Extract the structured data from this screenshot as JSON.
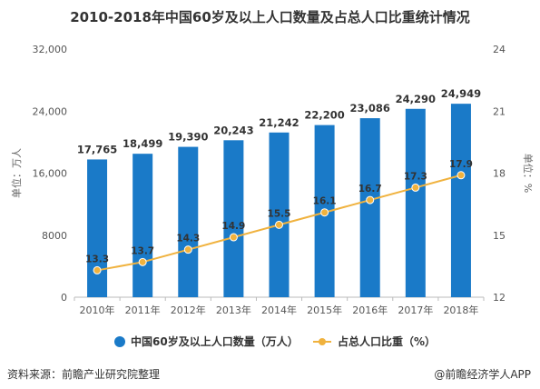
{
  "chart_data": {
    "type": "bar+line",
    "title": "2010-2018年中国60岁及以上人口数量及占总人口比重统计情况",
    "categories": [
      "2010年",
      "2011年",
      "2012年",
      "2013年",
      "2014年",
      "2015年",
      "2016年",
      "2017年",
      "2018年"
    ],
    "series": [
      {
        "name": "中国60岁及以上人口数量（万人）",
        "type": "bar",
        "axis": "left",
        "values": [
          17765,
          18499,
          19390,
          20243,
          21242,
          22200,
          23086,
          24290,
          24949
        ],
        "labels": [
          "17,765",
          "18,499",
          "19,390",
          "20,243",
          "21,242",
          "22,200",
          "23,086",
          "24,290",
          "24,949"
        ]
      },
      {
        "name": "占总人口比重（%）",
        "type": "line",
        "axis": "right",
        "values": [
          13.3,
          13.7,
          14.3,
          14.9,
          15.5,
          16.1,
          16.7,
          17.3,
          17.9
        ],
        "labels": [
          "13.3",
          "13.7",
          "14.3",
          "14.9",
          "15.5",
          "16.1",
          "16.7",
          "17.3",
          "17.9"
        ]
      }
    ],
    "ylabel_left": "单位：万人",
    "ylabel_right": "单位：%",
    "ylim_left": [
      0,
      32000
    ],
    "yticks_left": [
      0,
      8000,
      16000,
      24000,
      32000
    ],
    "ytick_labels_left": [
      "0",
      "8000",
      "16,000",
      "24,000",
      "32,000"
    ],
    "ylim_right": [
      12,
      24
    ],
    "yticks_right": [
      12,
      15,
      18,
      21,
      24
    ],
    "ytick_labels_right": [
      "12",
      "15",
      "18",
      "21",
      "24"
    ],
    "grid": false,
    "legend_position": "bottom",
    "colors": {
      "bar": "#1a7ac8",
      "line": "#f0b23e",
      "marker": "#f0b23e"
    }
  },
  "footer": {
    "source": "资料来源：前瞻产业研究院整理",
    "credit": "@前瞻经济学人APP"
  }
}
